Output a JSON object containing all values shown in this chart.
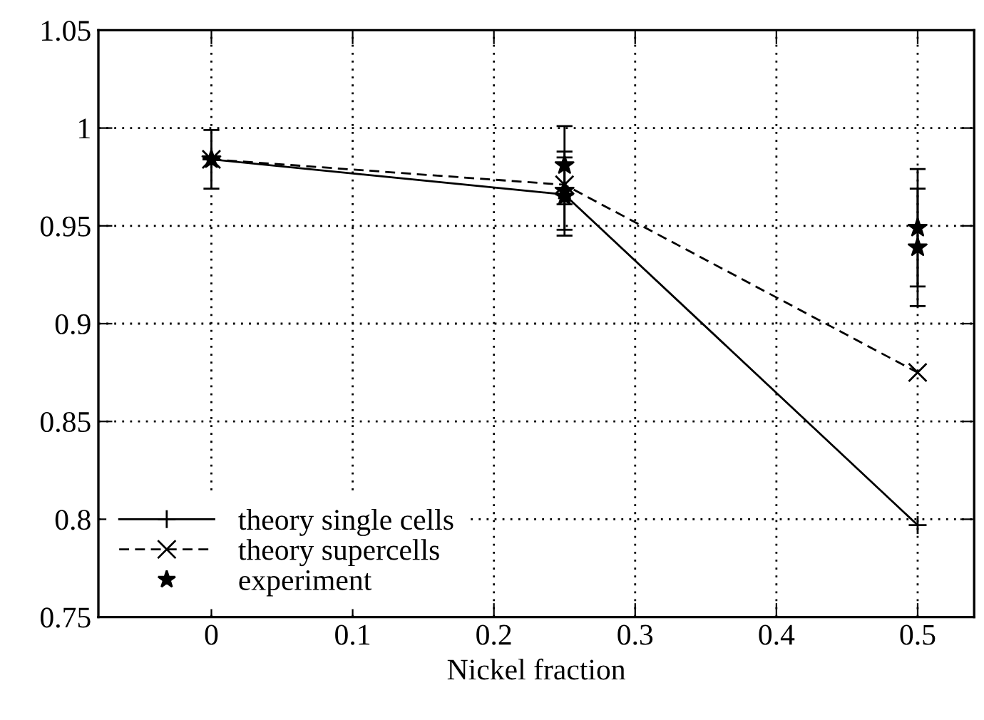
{
  "chart_data": {
    "type": "line",
    "xlabel": "Nickel fraction",
    "xlim": [
      -0.08,
      0.54
    ],
    "xticks": [
      0,
      0.1,
      0.2,
      0.3,
      0.4,
      0.5
    ],
    "ylim": [
      0.75,
      1.05
    ],
    "yticks": [
      0.75,
      0.8,
      0.85,
      0.9,
      0.95,
      {
        "value": 1,
        "label": "1"
      },
      1.05
    ],
    "grid": true,
    "legend": "bottom left",
    "series": [
      {
        "name": "theory single cells",
        "color": "#000000",
        "marker": "plus",
        "line_style": "solid",
        "x": [
          0,
          0.25,
          0.5
        ],
        "values": [
          0.984,
          0.966,
          0.797
        ]
      },
      {
        "name": "theory supercells",
        "color": "#000000",
        "marker": "cross",
        "line_style": "dashed",
        "x": [
          0,
          0.25,
          0.5
        ],
        "values": [
          0.984,
          0.971,
          0.875
        ]
      },
      {
        "name": "experiment",
        "color": "#000000",
        "type": "scatter",
        "marker": "star",
        "x": [
          0,
          0.25,
          0.25,
          0.25,
          0.5,
          0.5
        ],
        "values": [
          0.984,
          0.981,
          0.968,
          0.965,
          0.949,
          0.939
        ],
        "errors": [
          0.015,
          0.02,
          0.02,
          0.02,
          0.03,
          0.03
        ]
      }
    ]
  }
}
